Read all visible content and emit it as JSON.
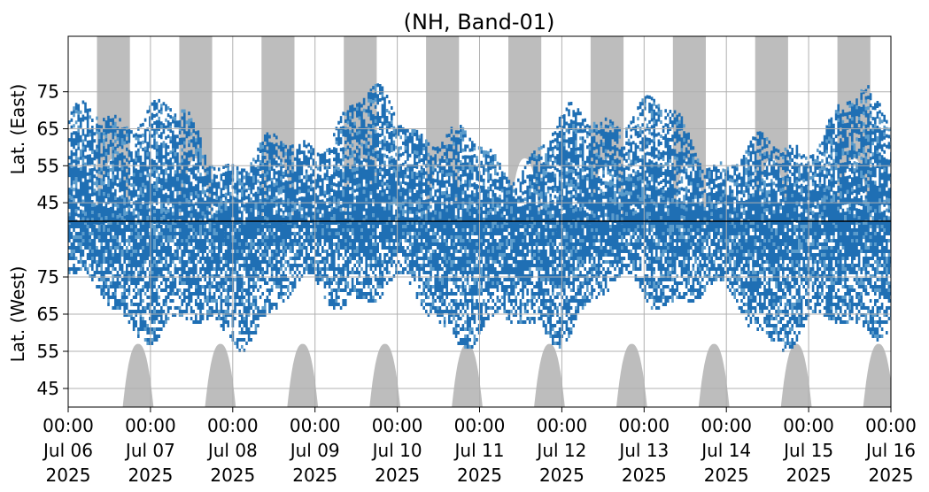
{
  "chart_data": {
    "type": "heatmap",
    "title": "(NH, Band-01)",
    "ylabel_top": "Lat. (East)",
    "ylabel_bottom": "Lat. (West)",
    "x_ticks": [
      {
        "time": "00:00",
        "date": "Jul 06",
        "year": "2025"
      },
      {
        "time": "00:00",
        "date": "Jul 07",
        "year": "2025"
      },
      {
        "time": "00:00",
        "date": "Jul 08",
        "year": "2025"
      },
      {
        "time": "00:00",
        "date": "Jul 09",
        "year": "2025"
      },
      {
        "time": "00:00",
        "date": "Jul 10",
        "year": "2025"
      },
      {
        "time": "00:00",
        "date": "Jul 11",
        "year": "2025"
      },
      {
        "time": "00:00",
        "date": "Jul 12",
        "year": "2025"
      },
      {
        "time": "00:00",
        "date": "Jul 13",
        "year": "2025"
      },
      {
        "time": "00:00",
        "date": "Jul 14",
        "year": "2025"
      },
      {
        "time": "00:00",
        "date": "Jul 15",
        "year": "2025"
      },
      {
        "time": "00:00",
        "date": "Jul 16",
        "year": "2025"
      }
    ],
    "x_range": [
      "2025-07-06 00:00",
      "2025-07-16 00:00"
    ],
    "y_ticks_east": [
      "45",
      "55",
      "65",
      "75"
    ],
    "y_ticks_west": [
      "75",
      "65",
      "55",
      "45"
    ],
    "y_range_east": [
      40,
      90
    ],
    "y_range_west": [
      90,
      40
    ],
    "grid": true,
    "colors": {
      "strong": "#1f6fb4",
      "weak": "#5b9ccb",
      "daylight": "#bdbdbd",
      "grid": "#b0b0b0",
      "divider": "#000000"
    },
    "daylight_east_peak_days": [
      0.55,
      1.55,
      2.55,
      3.55,
      4.55,
      5.55,
      6.55,
      7.55,
      8.55,
      9.55
    ],
    "daylight_west_peak_days": [
      0.85,
      1.85,
      2.85,
      3.85,
      4.85,
      5.85,
      6.85,
      7.85,
      8.85,
      9.85
    ],
    "daylight_min_latitude": 57
  }
}
